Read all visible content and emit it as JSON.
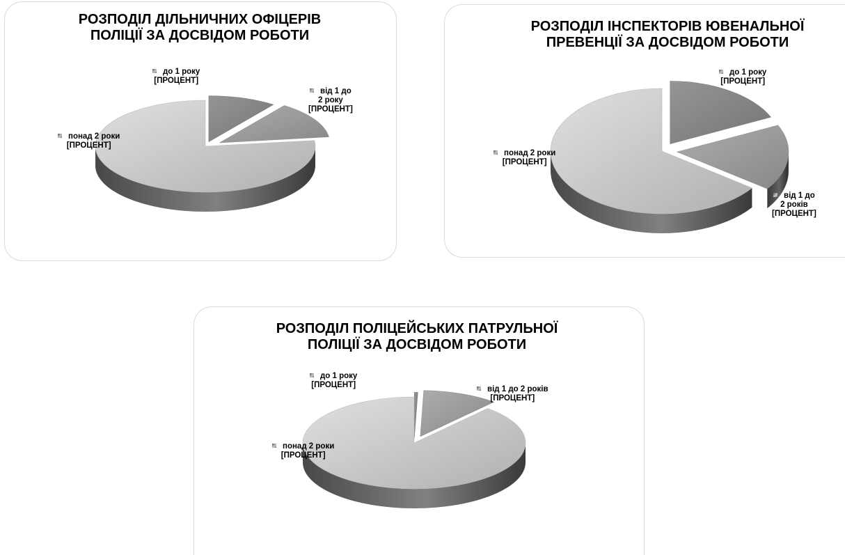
{
  "chart_data": [
    {
      "type": "pie",
      "title": "РОЗПОДІЛ ДІЛЬНИЧНИХ ОФІЦЕРІВ ПОЛІЦІЇ   ЗА ДОСВІДОМ РОБОТИ",
      "title_lines": [
        "РОЗПОДІЛ ДІЛЬНИЧНИХ ОФІЦЕРІВ",
        "ПОЛІЦІЇ   ЗА ДОСВІДОМ РОБОТИ"
      ],
      "slices": [
        {
          "name": "до 1 року",
          "value": 10,
          "label_lines": [
            "до 1 року",
            "[ПРОЦЕНТ]"
          ],
          "color": "#8a8a8a"
        },
        {
          "name": "від 1 до 2 року",
          "value": 13,
          "label_lines": [
            "від 1 до",
            "2 року",
            "[ПРОЦЕНТ]"
          ],
          "color": "#a0a0a0"
        },
        {
          "name": "понад 2 роки",
          "value": 77,
          "label_lines": [
            "понад 2 роки",
            "[ПРОЦЕНТ]"
          ],
          "color": "#cfcfcf"
        }
      ]
    },
    {
      "type": "pie",
      "title": "РОЗПОДІЛ ІНСПЕКТОРІВ ЮВЕНАЛЬНОЇ ПРЕВЕНЦІЇ  ЗА ДОСВІДОМ РОБОТИ",
      "title_lines": [
        "РОЗПОДІЛ ІНСПЕКТОРІВ ЮВЕНАЛЬНОЇ",
        "ПРЕВЕНЦІЇ  ЗА ДОСВІДОМ РОБОТИ"
      ],
      "slices": [
        {
          "name": "до 1  року",
          "value": 18,
          "label_lines": [
            "до 1  року",
            "[ПРОЦЕНТ]"
          ],
          "color": "#8a8a8a"
        },
        {
          "name": "від 1 до 2 років",
          "value": 17,
          "label_lines": [
            "від 1 до",
            "2 років",
            "[ПРОЦЕНТ]"
          ],
          "color": "#a0a0a0"
        },
        {
          "name": "понад 2 роки",
          "value": 65,
          "label_lines": [
            "понад 2 роки",
            "[ПРОЦЕНТ]"
          ],
          "color": "#cfcfcf"
        }
      ]
    },
    {
      "type": "pie",
      "title": "РОЗПОДІЛ ПОЛІЦЕЙСЬКИХ ПАТРУЛЬНОЇ ПОЛІЦІЇ ЗА ДОСВІДОМ РОБОТИ",
      "title_lines": [
        "РОЗПОДІЛ ПОЛІЦЕЙСЬКИХ ПАТРУЛЬНОЇ",
        "ПОЛІЦІЇ ЗА ДОСВІДОМ РОБОТИ"
      ],
      "slices": [
        {
          "name": "до 1 року",
          "value": 0.5,
          "label_lines": [
            "до 1 року",
            "[ПРОЦЕНТ]"
          ],
          "color": "#8a8a8a"
        },
        {
          "name": "від 1 до 2 років",
          "value": 11,
          "label_lines": [
            "від 1 до 2 років",
            "[ПРОЦЕНТ]"
          ],
          "color": "#a0a0a0"
        },
        {
          "name": "понад 2 роки",
          "value": 88.5,
          "label_lines": [
            "понад 2 роки",
            "[ПРОЦЕНТ]"
          ],
          "color": "#cfcfcf"
        }
      ]
    }
  ]
}
